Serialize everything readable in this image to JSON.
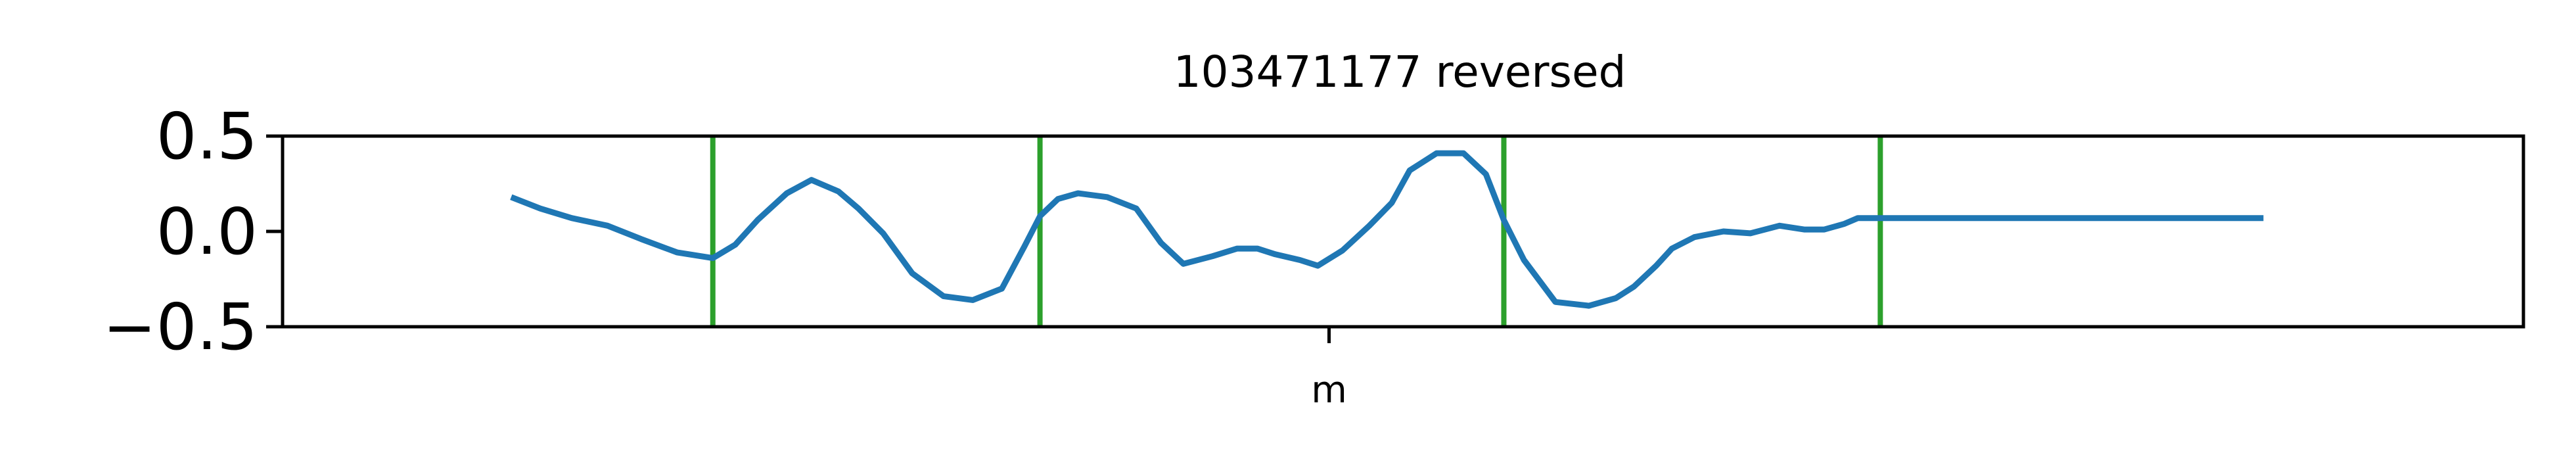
{
  "chart_data": {
    "type": "line",
    "title": "103471177 reversed",
    "xlabel": "",
    "ylabel": "",
    "xlim": [
      0,
      100
    ],
    "ylim": [
      -0.5,
      0.5
    ],
    "yticks": [
      -0.5,
      0.0,
      0.5
    ],
    "ytick_labels": [
      "−0.5",
      "0.0",
      "0.5"
    ],
    "xticks": [
      46.7
    ],
    "xtick_labels": [
      "m"
    ],
    "grid": false,
    "legend": "none",
    "colors": {
      "line": "#1f77b4",
      "markers": "#2ca02c",
      "axes": "#000000"
    },
    "vertical_markers_x": [
      19.2,
      33.8,
      54.5,
      71.3
    ],
    "series": [
      {
        "x": [
          10.2,
          11.5,
          12.9,
          14.5,
          16.0,
          17.6,
          19.2,
          20.2,
          21.2,
          22.5,
          23.6,
          24.8,
          25.7,
          26.8,
          28.1,
          29.5,
          30.8,
          32.1,
          33.1,
          33.8,
          34.6,
          35.5,
          36.8,
          38.1,
          39.2,
          40.2,
          41.5,
          42.6,
          43.5,
          44.3,
          45.4,
          46.2,
          47.3,
          48.5,
          49.5,
          50.3,
          51.5,
          52.7,
          53.7,
          54.5,
          55.4,
          56.8,
          58.3,
          59.5,
          60.3,
          61.3,
          62.0,
          63.0,
          64.3,
          65.5,
          66.8,
          67.9,
          68.8,
          69.7,
          70.3,
          71.3,
          72.0,
          73.2,
          74.3,
          75.2,
          76.0,
          77.3,
          78.5,
          80.0,
          81.6,
          83.0,
          84.2,
          85.3,
          86.5,
          87.5,
          88.4
        ],
        "y": [
          0.18,
          0.12,
          0.07,
          0.03,
          -0.04,
          -0.11,
          -0.14,
          -0.07,
          0.06,
          0.2,
          0.27,
          0.21,
          0.12,
          -0.01,
          -0.22,
          -0.34,
          -0.36,
          -0.3,
          -0.08,
          0.08,
          0.17,
          0.2,
          0.18,
          0.12,
          -0.06,
          -0.17,
          -0.13,
          -0.09,
          -0.09,
          -0.12,
          -0.15,
          -0.18,
          -0.1,
          0.03,
          0.15,
          0.32,
          0.41,
          0.41,
          0.3,
          0.06,
          -0.15,
          -0.37,
          -0.39,
          -0.35,
          -0.29,
          -0.18,
          -0.09,
          -0.03,
          0.0,
          -0.01,
          0.03,
          0.01,
          0.01,
          0.04,
          0.07,
          0.07,
          0.07,
          0.07,
          0.07,
          0.07,
          0.07,
          0.07,
          0.07,
          0.07,
          0.07,
          0.07,
          0.07,
          0.07,
          0.07,
          0.07,
          0.07
        ]
      }
    ]
  }
}
